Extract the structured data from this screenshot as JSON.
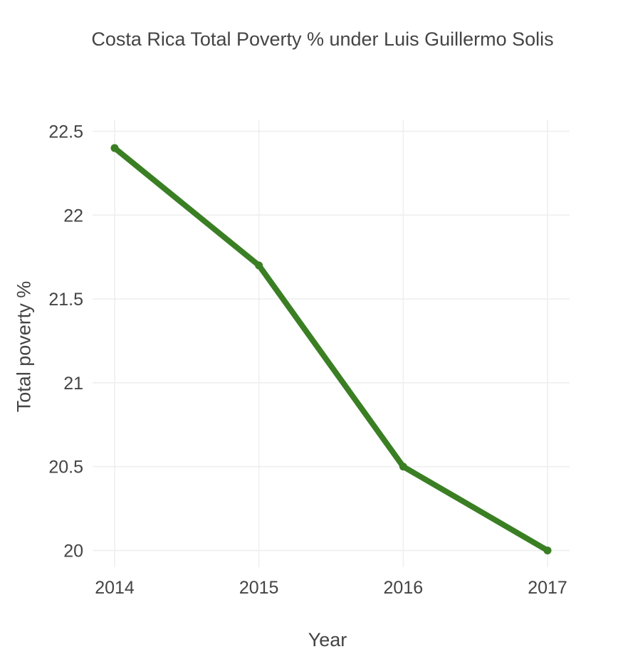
{
  "chart_data": {
    "type": "line",
    "title": "Costa Rica Total Poverty % under Luis Guillermo Solis",
    "xlabel": "Year",
    "ylabel": "Total poverty %",
    "x": [
      "2014",
      "2015",
      "2016",
      "2017"
    ],
    "series": [
      {
        "values": [
          22.4,
          21.7,
          20.5,
          20.0
        ]
      }
    ],
    "ylim": [
      19.9,
      22.57
    ],
    "yticks": [
      20,
      20.5,
      21,
      21.5,
      22,
      22.5
    ],
    "ytick_labels": [
      "20",
      "20.5",
      "21",
      "21.5",
      "22",
      "22.5"
    ],
    "grid": true,
    "line_color": "#3a7f23",
    "grid_color": "#eeeeee"
  }
}
